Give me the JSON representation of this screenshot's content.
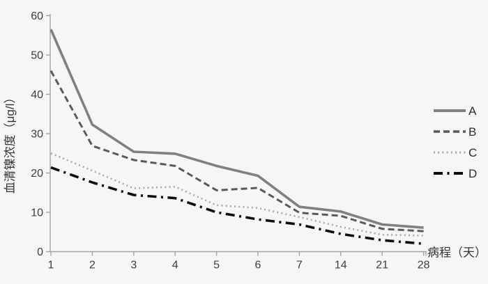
{
  "figure": {
    "background": "#f6f6f5",
    "axis_color": "#a3a3a3",
    "tick_label_color": "#3d3d3d",
    "axis_title_color": "#333333"
  },
  "chart_data": {
    "type": "line",
    "title": "",
    "xlabel": "病程（天）",
    "ylabel": "血清镍浓度（μg/l）",
    "categories": [
      "1",
      "2",
      "3",
      "4",
      "5",
      "6",
      "7",
      "14",
      "21",
      "28"
    ],
    "y_ticks": [
      0,
      10,
      20,
      30,
      40,
      50,
      60
    ],
    "ylim": [
      0,
      60
    ],
    "grid": false,
    "legend_position": "right-outside",
    "x_spacing": "equal (categorical)",
    "series": [
      {
        "name": "A",
        "style": "solid",
        "color": "#808080",
        "width": 3.6,
        "values": [
          56.5,
          32.3,
          25.4,
          24.9,
          21.8,
          19.3,
          11.4,
          10.2,
          6.9,
          6.1
        ]
      },
      {
        "name": "B",
        "style": "dashed",
        "color": "#595959",
        "width": 3.0,
        "values": [
          46.0,
          26.9,
          23.3,
          21.8,
          15.6,
          16.2,
          9.9,
          9.1,
          5.8,
          5.2
        ]
      },
      {
        "name": "C",
        "style": "dotted",
        "color": "#a8a8a8",
        "width": 2.6,
        "values": [
          25.0,
          20.6,
          16.1,
          16.5,
          11.8,
          11.1,
          8.8,
          6.3,
          4.3,
          4.1
        ]
      },
      {
        "name": "D",
        "style": "dashdot",
        "color": "#0d0d0d",
        "width": 3.6,
        "values": [
          21.4,
          17.6,
          14.4,
          13.6,
          10.0,
          8.2,
          6.9,
          4.5,
          2.9,
          2.0
        ]
      }
    ]
  }
}
